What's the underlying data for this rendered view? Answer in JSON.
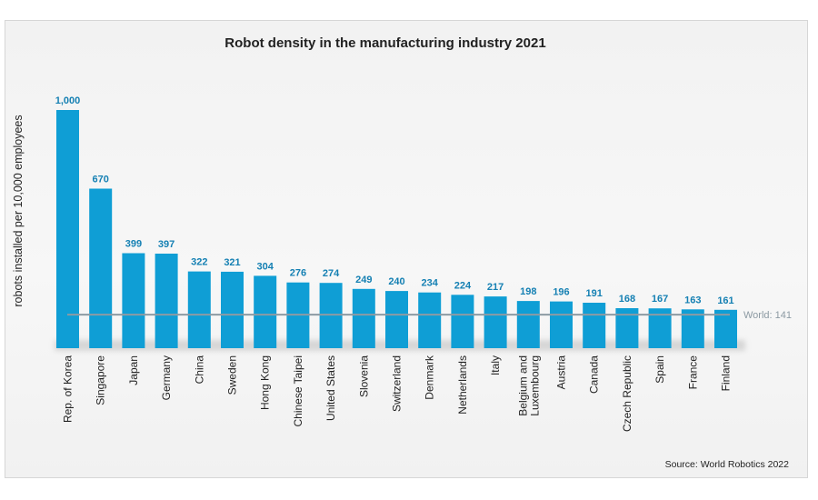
{
  "chart_data": {
    "type": "bar",
    "title": "Robot density in the manufacturing industry 2021",
    "ylabel": "robots installed per 10,000 employees",
    "xlabel": "",
    "categories": [
      "Rep. of Korea",
      "Singapore",
      "Japan",
      "Germany",
      "China",
      "Sweden",
      "Hong Kong",
      "Chinese Taipei",
      "United States",
      "Slovenia",
      "Switzerland",
      "Denmark",
      "Netherlands",
      "Italy",
      "Belgium and Luxembourg",
      "Austria",
      "Canada",
      "Czech Republic",
      "Spain",
      "France",
      "Finland"
    ],
    "values": [
      1000,
      670,
      399,
      397,
      322,
      321,
      304,
      276,
      274,
      249,
      240,
      234,
      224,
      217,
      198,
      196,
      191,
      168,
      167,
      163,
      161
    ],
    "value_labels": [
      "1,000",
      "670",
      "399",
      "397",
      "322",
      "321",
      "304",
      "276",
      "274",
      "249",
      "240",
      "234",
      "224",
      "217",
      "198",
      "196",
      "191",
      "168",
      "167",
      "163",
      "161"
    ],
    "ylim": [
      0,
      1000
    ],
    "reference_line": {
      "value": 141,
      "label": "World: 141"
    },
    "source": "Source: World Robotics 2022",
    "grid": false,
    "colors": {
      "bar": "#0f9ed5",
      "value_label": "#1580b3",
      "reference_line": "#8c9aa3",
      "reference_label": "#8c9aa3",
      "text": "#222222"
    }
  }
}
